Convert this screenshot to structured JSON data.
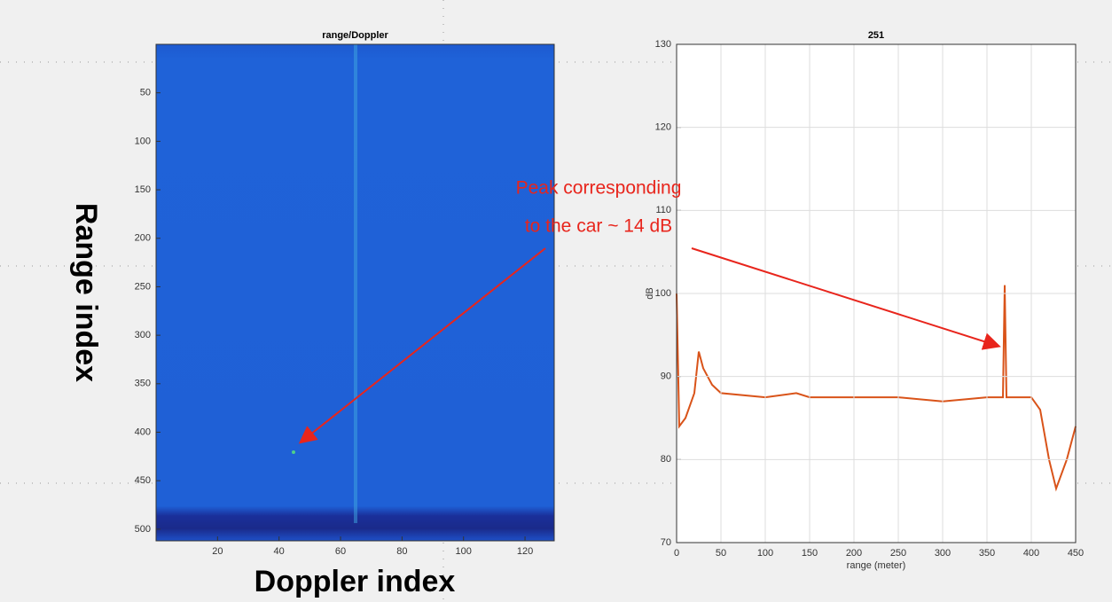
{
  "chart_data": [
    {
      "type": "heatmap",
      "title": "range/Doppler",
      "x_label": "Doppler index",
      "y_label": "Range index",
      "xlim": [
        0,
        129.5
      ],
      "xticks": [
        20,
        40,
        60,
        80,
        100,
        120
      ],
      "ylim": [
        0,
        512
      ],
      "yticks": [
        50,
        100,
        150,
        200,
        250,
        300,
        350,
        400,
        450,
        500
      ],
      "y_inverted": true,
      "grid": false,
      "color": "#1f62d8"
    },
    {
      "type": "line",
      "title": "251",
      "x_label": "range (meter)",
      "y_label": "dB",
      "xlim": [
        0,
        450
      ],
      "xticks": [
        0,
        50,
        100,
        150,
        200,
        250,
        300,
        350,
        400,
        450
      ],
      "ylim": [
        70,
        130
      ],
      "yticks": [
        70,
        80,
        90,
        100,
        110,
        120,
        130
      ],
      "grid": true,
      "color": "#d95319",
      "x": [
        0,
        3,
        10,
        20,
        25,
        30,
        40,
        50,
        100,
        135,
        150,
        200,
        250,
        300,
        350,
        368,
        370,
        372,
        400,
        410,
        420,
        428,
        440,
        450
      ],
      "values": [
        100,
        84,
        85,
        88,
        93,
        91,
        89,
        88,
        87.5,
        88,
        87.5,
        87.5,
        87.5,
        87,
        87.5,
        87.5,
        101,
        87.5,
        87.5,
        86,
        80,
        76.5,
        80,
        84
      ]
    }
  ],
  "annotation": {
    "lines": [
      "Peak corresponding",
      "to the car ~ 14 dB"
    ]
  }
}
